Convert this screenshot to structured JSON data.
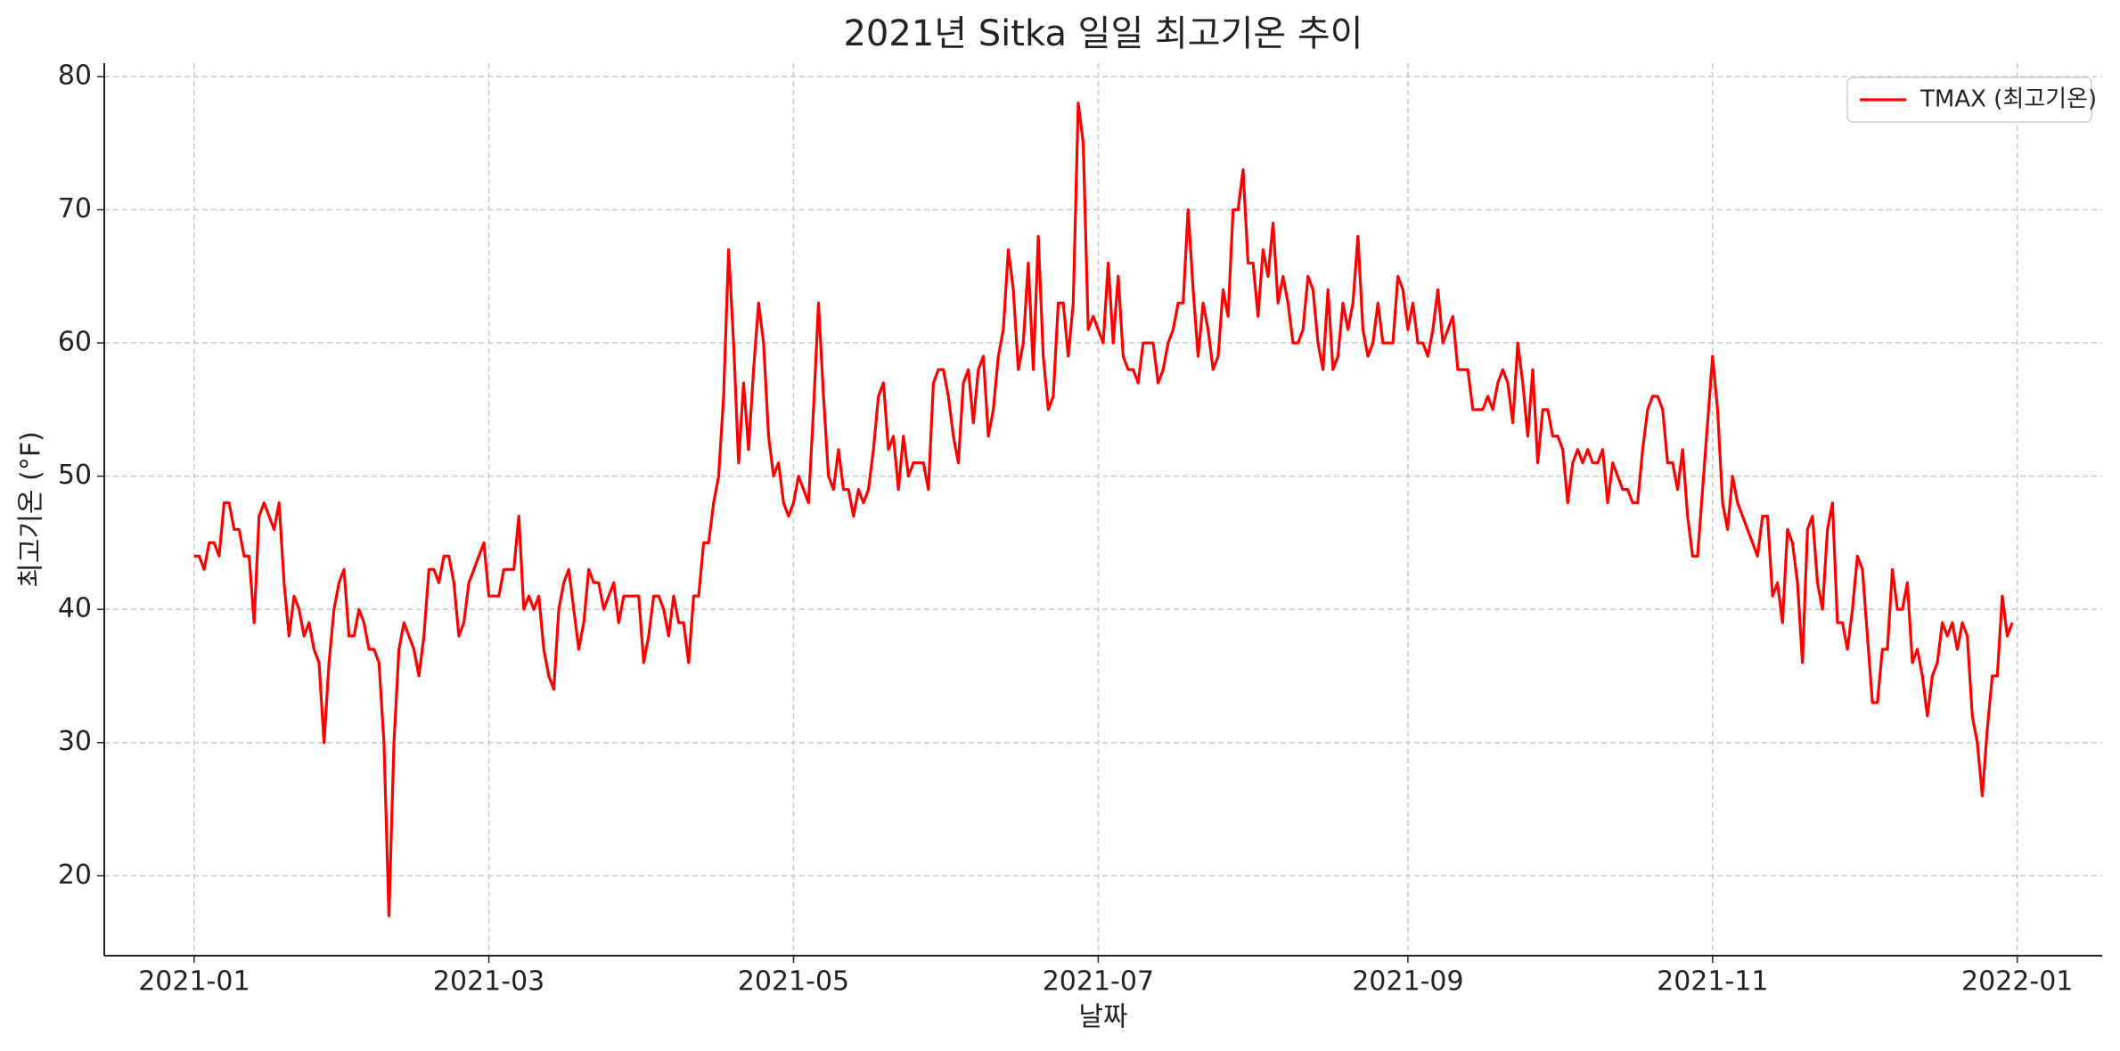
{
  "chart_data": {
    "type": "line",
    "title": "2021년 Sitka 일일 최고기온 추이",
    "xlabel": "날짜",
    "ylabel": "최고기온 (°F)",
    "x": [
      0,
      1,
      2,
      3,
      4,
      5,
      6,
      7,
      8,
      9,
      10,
      11,
      12,
      13,
      14,
      15,
      16,
      17,
      18,
      19,
      20,
      21,
      22,
      23,
      24,
      25,
      26,
      27,
      28,
      29,
      30,
      31,
      32,
      33,
      34,
      35,
      36,
      37,
      38,
      39,
      40,
      41,
      42,
      43,
      44,
      45,
      46,
      47,
      48,
      49,
      50,
      51,
      52,
      53,
      54,
      55,
      56,
      57,
      58,
      59,
      60,
      61,
      62,
      63,
      64,
      65,
      66,
      67,
      68,
      69,
      70,
      71,
      72,
      73,
      74,
      75,
      76,
      77,
      78,
      79,
      80,
      81,
      82,
      83,
      84,
      85,
      86,
      87,
      88,
      89,
      90,
      91,
      92,
      93,
      94,
      95,
      96,
      97,
      98,
      99,
      100,
      101,
      102,
      103,
      104,
      105,
      106,
      107,
      108,
      109,
      110,
      111,
      112,
      113,
      114,
      115,
      116,
      117,
      118,
      119,
      120,
      121,
      122,
      123,
      124,
      125,
      126,
      127,
      128,
      129,
      130,
      131,
      132,
      133,
      134,
      135,
      136,
      137,
      138,
      139,
      140,
      141,
      142,
      143,
      144,
      145,
      146,
      147,
      148,
      149,
      150,
      151,
      152,
      153,
      154,
      155,
      156,
      157,
      158,
      159,
      160,
      161,
      162,
      163,
      164,
      165,
      166,
      167,
      168,
      169,
      170,
      171,
      172,
      173,
      174,
      175,
      176,
      177,
      178,
      179,
      180,
      181,
      182,
      183,
      184,
      185,
      186,
      187,
      188,
      189,
      190,
      191,
      192,
      193,
      194,
      195,
      196,
      197,
      198,
      199,
      200,
      201,
      202,
      203,
      204,
      205,
      206,
      207,
      208,
      209,
      210,
      211,
      212,
      213,
      214,
      215,
      216,
      217,
      218,
      219,
      220,
      221,
      222,
      223,
      224,
      225,
      226,
      227,
      228,
      229,
      230,
      231,
      232,
      233,
      234,
      235,
      236,
      237,
      238,
      239,
      240,
      241,
      242,
      243,
      244,
      245,
      246,
      247,
      248,
      249,
      250,
      251,
      252,
      253,
      254,
      255,
      256,
      257,
      258,
      259,
      260,
      261,
      262,
      263,
      264,
      265,
      266,
      267,
      268,
      269,
      270,
      271,
      272,
      273,
      274,
      275,
      276,
      277,
      278,
      279,
      280,
      281,
      282,
      283,
      284,
      285,
      286,
      287,
      288,
      289,
      290,
      291,
      292,
      293,
      294,
      295,
      296,
      297,
      298,
      299,
      300,
      301,
      302,
      303,
      304,
      305,
      306,
      307,
      308,
      309,
      310,
      311,
      312,
      313,
      314,
      315,
      316,
      317,
      318,
      319,
      320,
      321,
      322,
      323,
      324,
      325,
      326,
      327,
      328,
      329,
      330,
      331,
      332,
      333,
      334,
      335,
      336,
      337,
      338,
      339,
      340,
      341,
      342,
      343,
      344,
      345,
      346,
      347,
      348,
      349,
      350,
      351,
      352,
      353,
      354,
      355,
      356,
      357,
      358,
      359,
      360,
      361,
      362,
      363,
      364
    ],
    "series": [
      {
        "name": "TMAX (최고기온)",
        "color": "#ff0000",
        "values": [
          44,
          44,
          43,
          45,
          45,
          44,
          48,
          48,
          46,
          46,
          44,
          44,
          39,
          47,
          48,
          47,
          46,
          48,
          42,
          38,
          41,
          40,
          38,
          39,
          37,
          36,
          30,
          36,
          40,
          42,
          43,
          38,
          38,
          40,
          39,
          37,
          37,
          36,
          30,
          17,
          30,
          37,
          39,
          38,
          37,
          35,
          38,
          43,
          43,
          42,
          44,
          44,
          42,
          38,
          39,
          42,
          43,
          44,
          45,
          41,
          41,
          41,
          43,
          43,
          43,
          47,
          40,
          41,
          40,
          41,
          37,
          35,
          34,
          40,
          42,
          43,
          40,
          37,
          39,
          43,
          42,
          42,
          40,
          41,
          42,
          39,
          41,
          41,
          41,
          41,
          36,
          38,
          41,
          41,
          40,
          38,
          41,
          39,
          39,
          36,
          41,
          41,
          45,
          45,
          48,
          50,
          56,
          67,
          60,
          51,
          57,
          52,
          58,
          63,
          60,
          53,
          50,
          51,
          48,
          47,
          48,
          50,
          49,
          48,
          55,
          63,
          56,
          50,
          49,
          52,
          49,
          49,
          47,
          49,
          48,
          49,
          52,
          56,
          57,
          52,
          53,
          49,
          53,
          50,
          51,
          51,
          51,
          49,
          57,
          58,
          58,
          56,
          53,
          51,
          57,
          58,
          54,
          58,
          59,
          53,
          55,
          59,
          61,
          67,
          64,
          58,
          60,
          66,
          58,
          68,
          59,
          55,
          56,
          63,
          63,
          59,
          63,
          78,
          75,
          61,
          62,
          61,
          60,
          66,
          60,
          65,
          59,
          58,
          58,
          57,
          60,
          60,
          60,
          57,
          58,
          60,
          61,
          63,
          63,
          70,
          64,
          59,
          63,
          61,
          58,
          59,
          64,
          62,
          70,
          70,
          73,
          66,
          66,
          62,
          67,
          65,
          69,
          63,
          65,
          63,
          60,
          60,
          61,
          65,
          64,
          60,
          58,
          64,
          58,
          59,
          63,
          61,
          63,
          68,
          61,
          59,
          60,
          63,
          60,
          60,
          60,
          65,
          64,
          61,
          63,
          60,
          60,
          59,
          61,
          64,
          60,
          61,
          62,
          58,
          58,
          58,
          55,
          55,
          55,
          56,
          55,
          57,
          58,
          57,
          54,
          60,
          57,
          53,
          58,
          51,
          55,
          55,
          53,
          53,
          52,
          48,
          51,
          52,
          51,
          52,
          51,
          51,
          52,
          48,
          51,
          50,
          49,
          49,
          48,
          48,
          52,
          55,
          56,
          56,
          55,
          51,
          51,
          49,
          52,
          47,
          44,
          44,
          49,
          54,
          59,
          55,
          48,
          46,
          50,
          48,
          47,
          46,
          45,
          44,
          47,
          47,
          41,
          42,
          39,
          46,
          45,
          42,
          36,
          46,
          47,
          42,
          40,
          46,
          48,
          39,
          39,
          37,
          40,
          44,
          43,
          38,
          33,
          33,
          37,
          37,
          43,
          40,
          40,
          42,
          36,
          37,
          35,
          32,
          35,
          36,
          39,
          38,
          39,
          37,
          39,
          38,
          32,
          30,
          26,
          31,
          35,
          35,
          41,
          38,
          39
        ]
      }
    ],
    "xlim": [
      -18,
      382
    ],
    "xticks": [
      {
        "value": 0,
        "label": "2021-01"
      },
      {
        "value": 59,
        "label": "2021-03"
      },
      {
        "value": 120,
        "label": "2021-05"
      },
      {
        "value": 181,
        "label": "2021-07"
      },
      {
        "value": 243,
        "label": "2021-09"
      },
      {
        "value": 304,
        "label": "2021-11"
      },
      {
        "value": 365,
        "label": "2022-01"
      }
    ],
    "ylim": [
      14,
      81
    ],
    "yticks": [
      20,
      30,
      40,
      50,
      60,
      70,
      80
    ],
    "grid": true,
    "legend": "upper right"
  }
}
